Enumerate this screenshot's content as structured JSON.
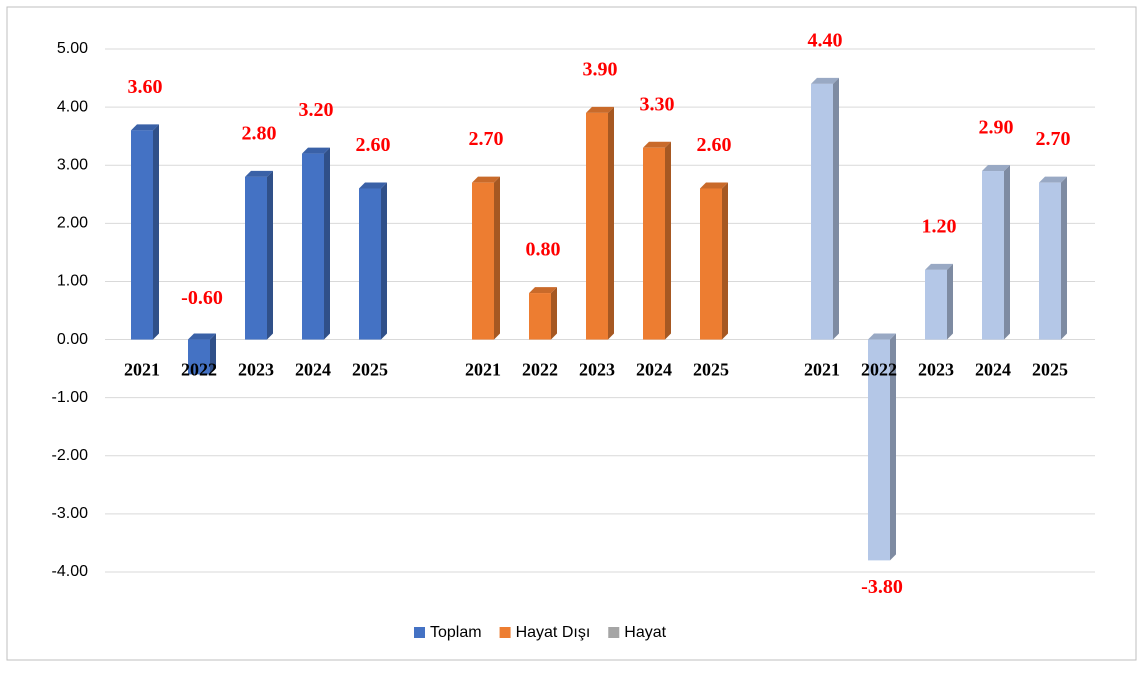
{
  "chart_data": {
    "type": "bar",
    "categories": [
      "2021",
      "2022",
      "2023",
      "2024",
      "2025"
    ],
    "series": [
      {
        "name": "Toplam",
        "color": "#4472c4",
        "legend_color": "#4472c4",
        "values": [
          3.6,
          -0.6,
          2.8,
          3.2,
          2.6
        ],
        "value_labels": [
          "3.60",
          "-0.60",
          "2.80",
          "3.20",
          "2.60"
        ]
      },
      {
        "name": "Hayat Dışı",
        "color": "#ed7d31",
        "legend_color": "#ed7d31",
        "values": [
          2.7,
          0.8,
          3.9,
          3.3,
          2.6
        ],
        "value_labels": [
          "2.70",
          "0.80",
          "3.90",
          "3.30",
          "2.60"
        ]
      },
      {
        "name": "Hayat",
        "color": "#b4c7e7",
        "legend_color": "#a5a5a5",
        "values": [
          4.4,
          -3.8,
          1.2,
          2.9,
          2.7
        ],
        "value_labels": [
          "4.40",
          "-3.80",
          "1.20",
          "2.90",
          "2.70"
        ]
      }
    ],
    "ylim": [
      -4,
      5
    ],
    "yticks": [
      {
        "value": -4,
        "label": "-4.00"
      },
      {
        "value": -3,
        "label": "-3.00"
      },
      {
        "value": -2,
        "label": "-2.00"
      },
      {
        "value": -1,
        "label": "-1.00"
      },
      {
        "value": 0,
        "label": "0.00"
      },
      {
        "value": 1,
        "label": "1.00"
      },
      {
        "value": 2,
        "label": "2.00"
      },
      {
        "value": 3,
        "label": "3.00"
      },
      {
        "value": 4,
        "label": "4.00"
      },
      {
        "value": 5,
        "label": "5.00"
      }
    ],
    "grid": true,
    "legend": "bottom"
  }
}
